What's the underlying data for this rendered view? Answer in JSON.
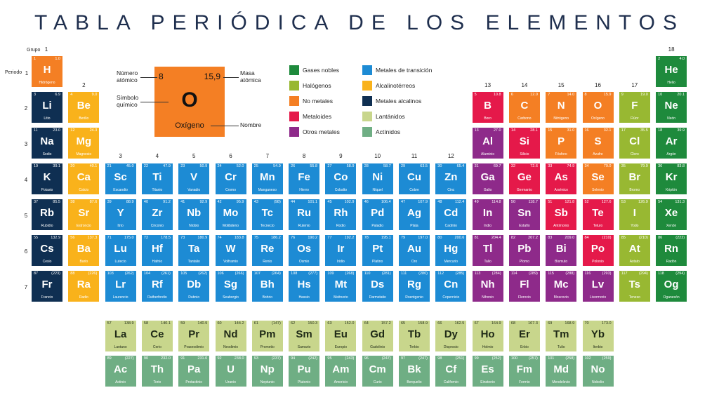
{
  "title": "TABLA PERIÓDICA DE LOS ELEMENTOS",
  "labels": {
    "grupo": "Grupo",
    "periodo": "Periodo"
  },
  "group_numbers": [
    "1",
    "2",
    "3",
    "4",
    "5",
    "6",
    "7",
    "8",
    "9",
    "10",
    "11",
    "12",
    "13",
    "14",
    "15",
    "16",
    "17",
    "18"
  ],
  "period_numbers": [
    "1",
    "2",
    "3",
    "4",
    "5",
    "6",
    "7"
  ],
  "categories": {
    "noble": {
      "label": "Gases nobles",
      "color": "#1e8a3c"
    },
    "halogen": {
      "label": "Halógenos",
      "color": "#98b832"
    },
    "nonmetal": {
      "label": "No metales",
      "color": "#f47f24"
    },
    "metalloid": {
      "label": "Metaloides",
      "color": "#e5194a"
    },
    "post": {
      "label": "Otros metales",
      "color": "#8e2a8a"
    },
    "transition": {
      "label": "Metales de transición",
      "color": "#1d8bd4"
    },
    "alkaline": {
      "label": "Alcalinotérreos",
      "color": "#f9b21b"
    },
    "alkali": {
      "label": "Metales alcalinos",
      "color": "#0f2f52"
    },
    "lanthanide": {
      "label": "Lantánidos",
      "color": "#c8d68c"
    },
    "actinide": {
      "label": "Actínidos",
      "color": "#6fae84"
    }
  },
  "legend_order": [
    "noble",
    "halogen",
    "nonmetal",
    "metalloid",
    "post",
    "transition",
    "alkaline",
    "alkali",
    "lanthanide",
    "actinide"
  ],
  "example": {
    "number": "8",
    "mass": "15,9",
    "symbol": "O",
    "name": "Oxígeno",
    "label_number": "Número atómico",
    "label_mass": "Masa atómica",
    "label_symbol": "Símbolo químico",
    "label_name": "Nombre"
  },
  "elements": [
    {
      "z": "1",
      "s": "H",
      "n": "Hidrógeno",
      "m": "1.0",
      "g": 1,
      "p": 1,
      "c": "nonmetal"
    },
    {
      "z": "2",
      "s": "He",
      "n": "Helio",
      "m": "4.0",
      "g": 18,
      "p": 1,
      "c": "noble"
    },
    {
      "z": "3",
      "s": "Li",
      "n": "Litio",
      "m": "6.9",
      "g": 1,
      "p": 2,
      "c": "alkali"
    },
    {
      "z": "4",
      "s": "Be",
      "n": "Berilio",
      "m": "9.0",
      "g": 2,
      "p": 2,
      "c": "alkaline"
    },
    {
      "z": "5",
      "s": "B",
      "n": "Boro",
      "m": "10.8",
      "g": 13,
      "p": 2,
      "c": "metalloid"
    },
    {
      "z": "6",
      "s": "C",
      "n": "Carbono",
      "m": "12.0",
      "g": 14,
      "p": 2,
      "c": "nonmetal"
    },
    {
      "z": "7",
      "s": "N",
      "n": "Nitrógeno",
      "m": "14.0",
      "g": 15,
      "p": 2,
      "c": "nonmetal"
    },
    {
      "z": "8",
      "s": "O",
      "n": "Oxígeno",
      "m": "15.9",
      "g": 16,
      "p": 2,
      "c": "nonmetal"
    },
    {
      "z": "9",
      "s": "F",
      "n": "Flúor",
      "m": "19.0",
      "g": 17,
      "p": 2,
      "c": "halogen"
    },
    {
      "z": "10",
      "s": "Ne",
      "n": "Neón",
      "m": "20.1",
      "g": 18,
      "p": 2,
      "c": "noble"
    },
    {
      "z": "11",
      "s": "Na",
      "n": "Sodio",
      "m": "23.0",
      "g": 1,
      "p": 3,
      "c": "alkali"
    },
    {
      "z": "12",
      "s": "Mg",
      "n": "Magnesio",
      "m": "24.3",
      "g": 2,
      "p": 3,
      "c": "alkaline"
    },
    {
      "z": "13",
      "s": "Al",
      "n": "Aluminio",
      "m": "27.0",
      "g": 13,
      "p": 3,
      "c": "post"
    },
    {
      "z": "14",
      "s": "Si",
      "n": "Silicio",
      "m": "28.1",
      "g": 14,
      "p": 3,
      "c": "metalloid"
    },
    {
      "z": "15",
      "s": "P",
      "n": "Fósforo",
      "m": "31.0",
      "g": 15,
      "p": 3,
      "c": "nonmetal"
    },
    {
      "z": "16",
      "s": "S",
      "n": "Azufre",
      "m": "32.1",
      "g": 16,
      "p": 3,
      "c": "nonmetal"
    },
    {
      "z": "17",
      "s": "Cl",
      "n": "Cloro",
      "m": "35.5",
      "g": 17,
      "p": 3,
      "c": "halogen"
    },
    {
      "z": "18",
      "s": "Ar",
      "n": "Argón",
      "m": "39.9",
      "g": 18,
      "p": 3,
      "c": "noble"
    },
    {
      "z": "19",
      "s": "K",
      "n": "Potasio",
      "m": "39.1",
      "g": 1,
      "p": 4,
      "c": "alkali"
    },
    {
      "z": "20",
      "s": "Ca",
      "n": "Calcio",
      "m": "40.1",
      "g": 2,
      "p": 4,
      "c": "alkaline"
    },
    {
      "z": "21",
      "s": "Sc",
      "n": "Escandio",
      "m": "45.0",
      "g": 3,
      "p": 4,
      "c": "transition"
    },
    {
      "z": "22",
      "s": "Ti",
      "n": "Titanio",
      "m": "47.9",
      "g": 4,
      "p": 4,
      "c": "transition"
    },
    {
      "z": "23",
      "s": "V",
      "n": "Vanadio",
      "m": "50.9",
      "g": 5,
      "p": 4,
      "c": "transition"
    },
    {
      "z": "24",
      "s": "Cr",
      "n": "Cromo",
      "m": "52.0",
      "g": 6,
      "p": 4,
      "c": "transition"
    },
    {
      "z": "25",
      "s": "Mn",
      "n": "Manganeso",
      "m": "54.9",
      "g": 7,
      "p": 4,
      "c": "transition"
    },
    {
      "z": "26",
      "s": "Fe",
      "n": "Hierro",
      "m": "55.8",
      "g": 8,
      "p": 4,
      "c": "transition"
    },
    {
      "z": "27",
      "s": "Co",
      "n": "Cobalto",
      "m": "58.9",
      "g": 9,
      "p": 4,
      "c": "transition"
    },
    {
      "z": "28",
      "s": "Ni",
      "n": "Níquel",
      "m": "58.7",
      "g": 10,
      "p": 4,
      "c": "transition"
    },
    {
      "z": "29",
      "s": "Cu",
      "n": "Cobre",
      "m": "63.5",
      "g": 11,
      "p": 4,
      "c": "transition"
    },
    {
      "z": "30",
      "s": "Zn",
      "n": "Cinc",
      "m": "65.4",
      "g": 12,
      "p": 4,
      "c": "transition"
    },
    {
      "z": "31",
      "s": "Ga",
      "n": "Galio",
      "m": "69.7",
      "g": 13,
      "p": 4,
      "c": "post"
    },
    {
      "z": "32",
      "s": "Ge",
      "n": "Germanio",
      "m": "72.6",
      "g": 14,
      "p": 4,
      "c": "metalloid"
    },
    {
      "z": "33",
      "s": "As",
      "n": "Arsénico",
      "m": "74.9",
      "g": 15,
      "p": 4,
      "c": "metalloid"
    },
    {
      "z": "34",
      "s": "Se",
      "n": "Selenio",
      "m": "79.0",
      "g": 16,
      "p": 4,
      "c": "nonmetal"
    },
    {
      "z": "35",
      "s": "Br",
      "n": "Bromo",
      "m": "79.9",
      "g": 17,
      "p": 4,
      "c": "halogen"
    },
    {
      "z": "36",
      "s": "Kr",
      "n": "Kriptón",
      "m": "83.8",
      "g": 18,
      "p": 4,
      "c": "noble"
    },
    {
      "z": "37",
      "s": "Rb",
      "n": "Rubidio",
      "m": "85.5",
      "g": 1,
      "p": 5,
      "c": "alkali"
    },
    {
      "z": "38",
      "s": "Sr",
      "n": "Estroncio",
      "m": "87.6",
      "g": 2,
      "p": 5,
      "c": "alkaline"
    },
    {
      "z": "39",
      "s": "Y",
      "n": "Itrio",
      "m": "88.9",
      "g": 3,
      "p": 5,
      "c": "transition"
    },
    {
      "z": "40",
      "s": "Zr",
      "n": "Circonio",
      "m": "91.2",
      "g": 4,
      "p": 5,
      "c": "transition"
    },
    {
      "z": "41",
      "s": "Nb",
      "n": "Niobio",
      "m": "92.9",
      "g": 5,
      "p": 5,
      "c": "transition"
    },
    {
      "z": "42",
      "s": "Mo",
      "n": "Molibdeno",
      "m": "95.9",
      "g": 6,
      "p": 5,
      "c": "transition"
    },
    {
      "z": "43",
      "s": "Tc",
      "n": "Tecnecio",
      "m": "(98)",
      "g": 7,
      "p": 5,
      "c": "transition"
    },
    {
      "z": "44",
      "s": "Ru",
      "n": "Rutenio",
      "m": "101.1",
      "g": 8,
      "p": 5,
      "c": "transition"
    },
    {
      "z": "45",
      "s": "Rh",
      "n": "Rodio",
      "m": "102.9",
      "g": 9,
      "p": 5,
      "c": "transition"
    },
    {
      "z": "46",
      "s": "Pd",
      "n": "Paladio",
      "m": "106.4",
      "g": 10,
      "p": 5,
      "c": "transition"
    },
    {
      "z": "47",
      "s": "Ag",
      "n": "Plata",
      "m": "107.9",
      "g": 11,
      "p": 5,
      "c": "transition"
    },
    {
      "z": "48",
      "s": "Cd",
      "n": "Cadmio",
      "m": "112.4",
      "g": 12,
      "p": 5,
      "c": "transition"
    },
    {
      "z": "49",
      "s": "In",
      "n": "Indio",
      "m": "114.8",
      "g": 13,
      "p": 5,
      "c": "post"
    },
    {
      "z": "50",
      "s": "Sn",
      "n": "Estaño",
      "m": "118.7",
      "g": 14,
      "p": 5,
      "c": "post"
    },
    {
      "z": "51",
      "s": "Sb",
      "n": "Antimonio",
      "m": "121.8",
      "g": 15,
      "p": 5,
      "c": "metalloid"
    },
    {
      "z": "52",
      "s": "Te",
      "n": "Teluro",
      "m": "127.6",
      "g": 16,
      "p": 5,
      "c": "metalloid"
    },
    {
      "z": "53",
      "s": "I",
      "n": "Yodo",
      "m": "126.9",
      "g": 17,
      "p": 5,
      "c": "halogen"
    },
    {
      "z": "54",
      "s": "Xe",
      "n": "Xenón",
      "m": "131.3",
      "g": 18,
      "p": 5,
      "c": "noble"
    },
    {
      "z": "55",
      "s": "Cs",
      "n": "Cesio",
      "m": "132.9",
      "g": 1,
      "p": 6,
      "c": "alkali"
    },
    {
      "z": "56",
      "s": "Ba",
      "n": "Bario",
      "m": "137.3",
      "g": 2,
      "p": 6,
      "c": "alkaline"
    },
    {
      "z": "71",
      "s": "Lu",
      "n": "Lutecio",
      "m": "175.0",
      "g": 3,
      "p": 6,
      "c": "transition"
    },
    {
      "z": "72",
      "s": "Hf",
      "n": "Hafnio",
      "m": "178.5",
      "g": 4,
      "p": 6,
      "c": "transition"
    },
    {
      "z": "73",
      "s": "Ta",
      "n": "Tantalio",
      "m": "180.9",
      "g": 5,
      "p": 6,
      "c": "transition"
    },
    {
      "z": "74",
      "s": "W",
      "n": "Volframio",
      "m": "183.8",
      "g": 6,
      "p": 6,
      "c": "transition"
    },
    {
      "z": "75",
      "s": "Re",
      "n": "Renio",
      "m": "186.2",
      "g": 7,
      "p": 6,
      "c": "transition"
    },
    {
      "z": "76",
      "s": "Os",
      "n": "Osmio",
      "m": "190.2",
      "g": 8,
      "p": 6,
      "c": "transition"
    },
    {
      "z": "77",
      "s": "Ir",
      "n": "Iridio",
      "m": "192.2",
      "g": 9,
      "p": 6,
      "c": "transition"
    },
    {
      "z": "78",
      "s": "Pt",
      "n": "Platino",
      "m": "195.1",
      "g": 10,
      "p": 6,
      "c": "transition"
    },
    {
      "z": "79",
      "s": "Au",
      "n": "Oro",
      "m": "197.0",
      "g": 11,
      "p": 6,
      "c": "transition"
    },
    {
      "z": "80",
      "s": "Hg",
      "n": "Mercurio",
      "m": "200.6",
      "g": 12,
      "p": 6,
      "c": "transition"
    },
    {
      "z": "81",
      "s": "Tl",
      "n": "Talio",
      "m": "204.4",
      "g": 13,
      "p": 6,
      "c": "post"
    },
    {
      "z": "82",
      "s": "Pb",
      "n": "Plomo",
      "m": "207.2",
      "g": 14,
      "p": 6,
      "c": "post"
    },
    {
      "z": "83",
      "s": "Bi",
      "n": "Bismuto",
      "m": "209.0",
      "g": 15,
      "p": 6,
      "c": "post"
    },
    {
      "z": "84",
      "s": "Po",
      "n": "Polonio",
      "m": "(210)",
      "g": 16,
      "p": 6,
      "c": "metalloid"
    },
    {
      "z": "85",
      "s": "At",
      "n": "Astato",
      "m": "(210)",
      "g": 17,
      "p": 6,
      "c": "halogen"
    },
    {
      "z": "86",
      "s": "Rn",
      "n": "Radón",
      "m": "(222)",
      "g": 18,
      "p": 6,
      "c": "noble"
    },
    {
      "z": "87",
      "s": "Fr",
      "n": "Francio",
      "m": "(223)",
      "g": 1,
      "p": 7,
      "c": "alkali"
    },
    {
      "z": "88",
      "s": "Ra",
      "n": "Radio",
      "m": "(226)",
      "g": 2,
      "p": 7,
      "c": "alkaline"
    },
    {
      "z": "103",
      "s": "Lr",
      "n": "Laurencio",
      "m": "(262)",
      "g": 3,
      "p": 7,
      "c": "transition"
    },
    {
      "z": "104",
      "s": "Rf",
      "n": "Rutherfordio",
      "m": "(261)",
      "g": 4,
      "p": 7,
      "c": "transition"
    },
    {
      "z": "105",
      "s": "Db",
      "n": "Dubnio",
      "m": "(262)",
      "g": 5,
      "p": 7,
      "c": "transition"
    },
    {
      "z": "106",
      "s": "Sg",
      "n": "Seaborgio",
      "m": "(266)",
      "g": 6,
      "p": 7,
      "c": "transition"
    },
    {
      "z": "107",
      "s": "Bh",
      "n": "Bohrio",
      "m": "(264)",
      "g": 7,
      "p": 7,
      "c": "transition"
    },
    {
      "z": "108",
      "s": "Hs",
      "n": "Hassio",
      "m": "(277)",
      "g": 8,
      "p": 7,
      "c": "transition"
    },
    {
      "z": "109",
      "s": "Mt",
      "n": "Meitnerio",
      "m": "(268)",
      "g": 9,
      "p": 7,
      "c": "transition"
    },
    {
      "z": "110",
      "s": "Ds",
      "n": "Darmstatio",
      "m": "(281)",
      "g": 10,
      "p": 7,
      "c": "transition"
    },
    {
      "z": "111",
      "s": "Rg",
      "n": "Roentgenio",
      "m": "(280)",
      "g": 11,
      "p": 7,
      "c": "transition"
    },
    {
      "z": "112",
      "s": "Cn",
      "n": "Copernicio",
      "m": "(285)",
      "g": 12,
      "p": 7,
      "c": "transition"
    },
    {
      "z": "113",
      "s": "Nh",
      "n": "Nihonio",
      "m": "(284)",
      "g": 13,
      "p": 7,
      "c": "post"
    },
    {
      "z": "114",
      "s": "Fl",
      "n": "Flerovio",
      "m": "(289)",
      "g": 14,
      "p": 7,
      "c": "post"
    },
    {
      "z": "115",
      "s": "Mc",
      "n": "Moscovio",
      "m": "(288)",
      "g": 15,
      "p": 7,
      "c": "post"
    },
    {
      "z": "116",
      "s": "Lv",
      "n": "Livermorio",
      "m": "(293)",
      "g": 16,
      "p": 7,
      "c": "post"
    },
    {
      "z": "117",
      "s": "Ts",
      "n": "Teneso",
      "m": "(294)",
      "g": 17,
      "p": 7,
      "c": "halogen"
    },
    {
      "z": "118",
      "s": "Og",
      "n": "Oganesón",
      "m": "(294)",
      "g": 18,
      "p": 7,
      "c": "noble"
    },
    {
      "z": "57",
      "s": "La",
      "n": "Lantano",
      "m": "138.9",
      "g": 3,
      "p": 9,
      "c": "lanthanide"
    },
    {
      "z": "58",
      "s": "Ce",
      "n": "Cerio",
      "m": "140.1",
      "g": 4,
      "p": 9,
      "c": "lanthanide"
    },
    {
      "z": "59",
      "s": "Pr",
      "n": "Praseodimio",
      "m": "140.9",
      "g": 5,
      "p": 9,
      "c": "lanthanide"
    },
    {
      "z": "60",
      "s": "Nd",
      "n": "Neodimio",
      "m": "144.2",
      "g": 6,
      "p": 9,
      "c": "lanthanide"
    },
    {
      "z": "61",
      "s": "Pm",
      "n": "Prometio",
      "m": "(147)",
      "g": 7,
      "p": 9,
      "c": "lanthanide"
    },
    {
      "z": "62",
      "s": "Sm",
      "n": "Samario",
      "m": "150.3",
      "g": 8,
      "p": 9,
      "c": "lanthanide"
    },
    {
      "z": "63",
      "s": "Eu",
      "n": "Europio",
      "m": "152.0",
      "g": 9,
      "p": 9,
      "c": "lanthanide"
    },
    {
      "z": "64",
      "s": "Gd",
      "n": "Gadolinio",
      "m": "157.2",
      "g": 10,
      "p": 9,
      "c": "lanthanide"
    },
    {
      "z": "65",
      "s": "Tb",
      "n": "Terbio",
      "m": "158.9",
      "g": 11,
      "p": 9,
      "c": "lanthanide"
    },
    {
      "z": "66",
      "s": "Dy",
      "n": "Disprosio",
      "m": "162.5",
      "g": 12,
      "p": 9,
      "c": "lanthanide"
    },
    {
      "z": "67",
      "s": "Ho",
      "n": "Holmio",
      "m": "164.9",
      "g": 13,
      "p": 9,
      "c": "lanthanide"
    },
    {
      "z": "68",
      "s": "Er",
      "n": "Erbio",
      "m": "167.3",
      "g": 14,
      "p": 9,
      "c": "lanthanide"
    },
    {
      "z": "69",
      "s": "Tm",
      "n": "Tulio",
      "m": "168.9",
      "g": 15,
      "p": 9,
      "c": "lanthanide"
    },
    {
      "z": "70",
      "s": "Yb",
      "n": "Iterbio",
      "m": "173.0",
      "g": 16,
      "p": 9,
      "c": "lanthanide"
    },
    {
      "z": "89",
      "s": "Ac",
      "n": "Actinio",
      "m": "(227)",
      "g": 3,
      "p": 10,
      "c": "actinide"
    },
    {
      "z": "90",
      "s": "Th",
      "n": "Torio",
      "m": "232.0",
      "g": 4,
      "p": 10,
      "c": "actinide"
    },
    {
      "z": "91",
      "s": "Pa",
      "n": "Protactinio",
      "m": "231.0",
      "g": 5,
      "p": 10,
      "c": "actinide"
    },
    {
      "z": "92",
      "s": "U",
      "n": "Uranio",
      "m": "238.0",
      "g": 6,
      "p": 10,
      "c": "actinide"
    },
    {
      "z": "93",
      "s": "Np",
      "n": "Neptunio",
      "m": "(237)",
      "g": 7,
      "p": 10,
      "c": "actinide"
    },
    {
      "z": "94",
      "s": "Pu",
      "n": "Plutonio",
      "m": "(242)",
      "g": 8,
      "p": 10,
      "c": "actinide"
    },
    {
      "z": "95",
      "s": "Am",
      "n": "Americio",
      "m": "(243)",
      "g": 9,
      "p": 10,
      "c": "actinide"
    },
    {
      "z": "96",
      "s": "Cm",
      "n": "Curio",
      "m": "(247)",
      "g": 10,
      "p": 10,
      "c": "actinide"
    },
    {
      "z": "97",
      "s": "Bk",
      "n": "Berquelio",
      "m": "(247)",
      "g": 11,
      "p": 10,
      "c": "actinide"
    },
    {
      "z": "98",
      "s": "Cf",
      "n": "Californio",
      "m": "(251)",
      "g": 12,
      "p": 10,
      "c": "actinide"
    },
    {
      "z": "99",
      "s": "Es",
      "n": "Einstenio",
      "m": "(252)",
      "g": 13,
      "p": 10,
      "c": "actinide"
    },
    {
      "z": "100",
      "s": "Fm",
      "n": "Fermio",
      "m": "(257)",
      "g": 14,
      "p": 10,
      "c": "actinide"
    },
    {
      "z": "101",
      "s": "Md",
      "n": "Mendelevio",
      "m": "(258)",
      "g": 15,
      "p": 10,
      "c": "actinide"
    },
    {
      "z": "102",
      "s": "No",
      "n": "Nobelio",
      "m": "(259)",
      "g": 16,
      "p": 10,
      "c": "actinide"
    }
  ]
}
